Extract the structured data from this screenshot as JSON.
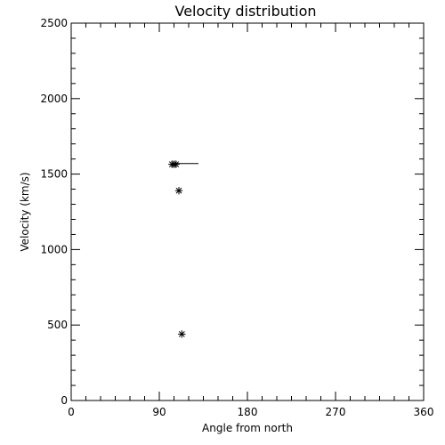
{
  "chart_data": {
    "type": "scatter",
    "title": "Velocity distribution",
    "xlabel": "Angle from north",
    "ylabel": "Velocity (km/s)",
    "xlim": [
      0,
      360
    ],
    "ylim": [
      0,
      2500
    ],
    "xticks": [
      0,
      90,
      180,
      270,
      360
    ],
    "yticks": [
      0,
      500,
      1000,
      1500,
      2000,
      2500
    ],
    "x_minor_step": 15,
    "y_minor_step": 100,
    "grid": false,
    "legend": "none",
    "marker": "asterisk",
    "color": "#000000",
    "points": [
      {
        "x": 103,
        "y": 1565
      },
      {
        "x": 105,
        "y": 1565
      },
      {
        "x": 107,
        "y": 1565
      },
      {
        "x": 110,
        "y": 1390
      },
      {
        "x": 113,
        "y": 440
      }
    ],
    "error_bars": [
      {
        "y": 1570,
        "x_from": 103,
        "x_to": 130
      }
    ]
  }
}
